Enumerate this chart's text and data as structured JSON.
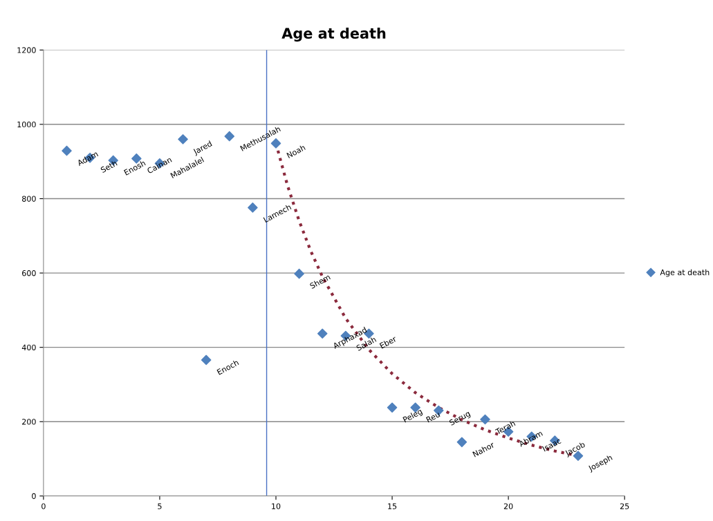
{
  "chart_data": {
    "type": "scatter",
    "title": "Age at death",
    "x": [
      1,
      2,
      3,
      4,
      5,
      6,
      7,
      8,
      9,
      10,
      11,
      12,
      13,
      14,
      15,
      16,
      17,
      18,
      19,
      20,
      21,
      22,
      23
    ],
    "series": [
      {
        "name": "Age at death",
        "color": "#4f81bd",
        "marker": "diamond",
        "values": [
          929,
          910,
          903,
          908,
          895,
          960,
          366,
          968,
          776,
          949,
          598,
          437,
          431,
          437,
          238,
          238,
          230,
          145,
          206,
          173,
          160,
          149,
          108
        ]
      },
      {
        "type": "line",
        "color": "#8b2a3d",
        "line_style": "dotted",
        "marker": "none",
        "x": [
          10,
          10.5,
          11,
          11.5,
          12,
          13,
          14,
          15,
          16,
          17,
          18,
          19,
          20,
          21,
          22,
          23
        ],
        "values": [
          949,
          835,
          740,
          659,
          590,
          478,
          394,
          329,
          278,
          238,
          205,
          178,
          156,
          137,
          121,
          108
        ]
      }
    ],
    "annotations": [
      {
        "text": "Adam",
        "x": 1,
        "y": 929
      },
      {
        "text": "Seth",
        "x": 2,
        "y": 910
      },
      {
        "text": "Enosh",
        "x": 3,
        "y": 903
      },
      {
        "text": "Cainan",
        "x": 4,
        "y": 908
      },
      {
        "text": "Mahalalel",
        "x": 5,
        "y": 895
      },
      {
        "text": "Jared",
        "x": 6,
        "y": 960
      },
      {
        "text": "Enoch",
        "x": 7,
        "y": 366
      },
      {
        "text": "Methusalah",
        "x": 8,
        "y": 968
      },
      {
        "text": "Lamech",
        "x": 9,
        "y": 776
      },
      {
        "text": "Noah",
        "x": 10,
        "y": 949
      },
      {
        "text": "Shem",
        "x": 11,
        "y": 598
      },
      {
        "text": "Arphaxad",
        "x": 12,
        "y": 437
      },
      {
        "text": "Salah",
        "x": 13,
        "y": 431
      },
      {
        "text": "Eber",
        "x": 14,
        "y": 437
      },
      {
        "text": "Peleg",
        "x": 15,
        "y": 238
      },
      {
        "text": "Reu",
        "x": 16,
        "y": 238
      },
      {
        "text": "Serug",
        "x": 17,
        "y": 230
      },
      {
        "text": "Nahor",
        "x": 18,
        "y": 145
      },
      {
        "text": "Terah",
        "x": 19,
        "y": 206
      },
      {
        "text": "Abram",
        "x": 20,
        "y": 173
      },
      {
        "text": "Isaac",
        "x": 21,
        "y": 160
      },
      {
        "text": "Jacob",
        "x": 22,
        "y": 149
      },
      {
        "text": "Joseph",
        "x": 23,
        "y": 108
      }
    ],
    "ref_lines": [
      {
        "axis": "x",
        "value": 9.6,
        "color": "#4a72c4"
      }
    ],
    "xlim": [
      0,
      25
    ],
    "xticks": [
      0,
      5,
      10,
      15,
      20,
      25
    ],
    "ylim": [
      0,
      1200
    ],
    "yticks": [
      0,
      200,
      400,
      600,
      800,
      1000,
      1200
    ],
    "grid": "y",
    "legend": "right"
  }
}
